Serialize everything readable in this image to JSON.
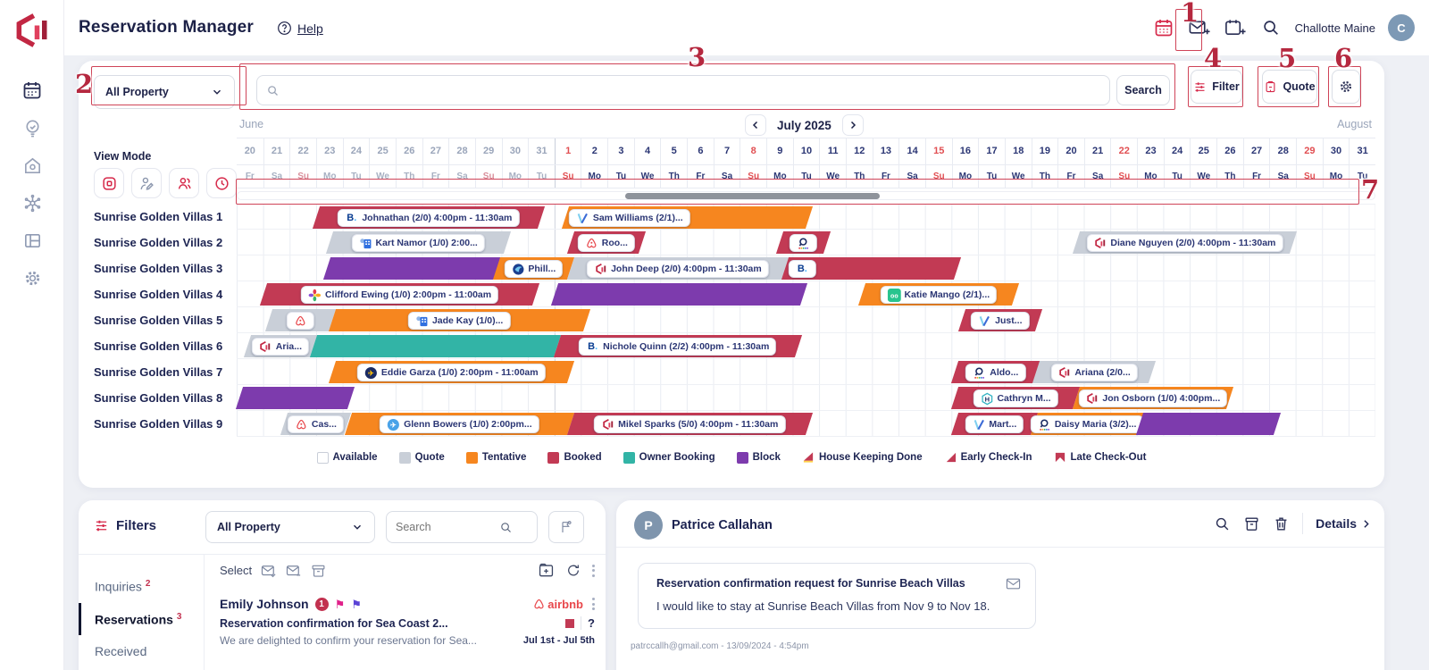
{
  "annotations": [
    "1",
    "2",
    "3",
    "4",
    "5",
    "6",
    "7"
  ],
  "header": {
    "title": "Reservation Manager",
    "help": "Help",
    "user": "Challotte Maine",
    "avatar_initial": "C"
  },
  "toolbar": {
    "property": "All Property",
    "search_btn": "Search",
    "filter": "Filter",
    "quote": "Quote"
  },
  "calendar": {
    "view_mode_label": "View Mode",
    "prev_month": "June",
    "current_month": "July 2025",
    "next_month": "August",
    "days": [
      {
        "d": "20",
        "w": "Fr",
        "m": "jun",
        "sun": false
      },
      {
        "d": "21",
        "w": "Sa",
        "m": "jun",
        "sun": false
      },
      {
        "d": "22",
        "w": "Su",
        "m": "jun",
        "sun": true
      },
      {
        "d": "23",
        "w": "Mo",
        "m": "jun",
        "sun": false
      },
      {
        "d": "24",
        "w": "Tu",
        "m": "jun",
        "sun": false
      },
      {
        "d": "25",
        "w": "We",
        "m": "jun",
        "sun": false
      },
      {
        "d": "26",
        "w": "Th",
        "m": "jun",
        "sun": false
      },
      {
        "d": "27",
        "w": "Fr",
        "m": "jun",
        "sun": false
      },
      {
        "d": "28",
        "w": "Sa",
        "m": "jun",
        "sun": false
      },
      {
        "d": "29",
        "w": "Su",
        "m": "jun",
        "sun": true
      },
      {
        "d": "30",
        "w": "Mo",
        "m": "jun",
        "sun": false
      },
      {
        "d": "31",
        "w": "Tu",
        "m": "jun",
        "sun": false
      },
      {
        "d": "1",
        "w": "Su",
        "m": "jul",
        "sun": true
      },
      {
        "d": "2",
        "w": "Mo",
        "m": "jul",
        "sun": false
      },
      {
        "d": "3",
        "w": "Tu",
        "m": "jul",
        "sun": false
      },
      {
        "d": "4",
        "w": "We",
        "m": "jul",
        "sun": false
      },
      {
        "d": "5",
        "w": "Th",
        "m": "jul",
        "sun": false
      },
      {
        "d": "6",
        "w": "Fr",
        "m": "jul",
        "sun": false
      },
      {
        "d": "7",
        "w": "Sa",
        "m": "jul",
        "sun": false
      },
      {
        "d": "8",
        "w": "Su",
        "m": "jul",
        "sun": true
      },
      {
        "d": "9",
        "w": "Mo",
        "m": "jul",
        "sun": false
      },
      {
        "d": "10",
        "w": "Tu",
        "m": "jul",
        "sun": false
      },
      {
        "d": "11",
        "w": "We",
        "m": "jul",
        "sun": false
      },
      {
        "d": "12",
        "w": "Th",
        "m": "jul",
        "sun": false
      },
      {
        "d": "13",
        "w": "Fr",
        "m": "jul",
        "sun": false
      },
      {
        "d": "14",
        "w": "Sa",
        "m": "jul",
        "sun": false
      },
      {
        "d": "15",
        "w": "Su",
        "m": "jul",
        "sun": true
      },
      {
        "d": "16",
        "w": "Mo",
        "m": "jul",
        "sun": false
      },
      {
        "d": "17",
        "w": "Tu",
        "m": "jul",
        "sun": false
      },
      {
        "d": "18",
        "w": "We",
        "m": "jul",
        "sun": false
      },
      {
        "d": "19",
        "w": "Th",
        "m": "jul",
        "sun": false
      },
      {
        "d": "20",
        "w": "Fr",
        "m": "jul",
        "sun": false
      },
      {
        "d": "21",
        "w": "Sa",
        "m": "jul",
        "sun": false
      },
      {
        "d": "22",
        "w": "Su",
        "m": "jul",
        "sun": true
      },
      {
        "d": "23",
        "w": "Mo",
        "m": "jul",
        "sun": false
      },
      {
        "d": "24",
        "w": "Tu",
        "m": "jul",
        "sun": false
      },
      {
        "d": "25",
        "w": "We",
        "m": "jul",
        "sun": false
      },
      {
        "d": "26",
        "w": "Th",
        "m": "jul",
        "sun": false
      },
      {
        "d": "27",
        "w": "Fr",
        "m": "jul",
        "sun": false
      },
      {
        "d": "28",
        "w": "Sa",
        "m": "jul",
        "sun": false
      },
      {
        "d": "29",
        "w": "Su",
        "m": "jul",
        "sun": true
      },
      {
        "d": "30",
        "w": "Mo",
        "m": "jul",
        "sun": false
      },
      {
        "d": "31",
        "w": "Tu",
        "m": "jul",
        "sun": false
      }
    ],
    "rows": [
      {
        "label": "Sunrise Golden Villas 1",
        "bars": [
          {
            "t": "booked",
            "s": 3,
            "e": 11.5,
            "icon": "booking",
            "label": "Johnathan (2/0) 4:00pm - 11:30am"
          },
          {
            "t": "tentative",
            "s": 12.4,
            "e": 21.6,
            "icon": "vrbo",
            "label": "Sam Williams (2/1)...",
            "align": "left"
          }
        ]
      },
      {
        "label": "Sunrise Golden Villas 2",
        "bars": [
          {
            "t": "quote",
            "s": 3.5,
            "e": 10.2,
            "icon": "house-blue",
            "label": "Kart Namor (1/0) 2:00..."
          },
          {
            "t": "booked",
            "s": 12.6,
            "e": 15.3,
            "icon": "airbnb",
            "label": "Roo..."
          },
          {
            "t": "booked",
            "s": 20.5,
            "e": 22.3,
            "icon": "agoda",
            "label": ""
          },
          {
            "t": "quote",
            "s": 31.7,
            "e": 39.9,
            "icon": "logo",
            "label": "Diane Nguyen (2/0) 4:00pm - 11:30am"
          }
        ]
      },
      {
        "label": "Sunrise Golden Villas 3",
        "bars": [
          {
            "t": "block",
            "s": 3.4,
            "e": 10.3
          },
          {
            "t": "tentative",
            "s": 9.8,
            "e": 12.6,
            "icon": "thunderbird",
            "label": "Phill..."
          },
          {
            "t": "quote",
            "s": 12.6,
            "e": 20.7,
            "icon": "logo",
            "label": "John Deep (2/0) 4:00pm - 11:30am"
          },
          {
            "t": "booked",
            "s": 20.7,
            "e": 27.2,
            "icon": "booking",
            "label": "",
            "align": "left"
          }
        ]
      },
      {
        "label": "Sunrise Golden Villas 4",
        "bars": [
          {
            "t": "booked",
            "s": 1,
            "e": 11.3,
            "icon": "pinwheel",
            "label": "Clifford Ewing (1/0) 2:00pm - 11:00am"
          },
          {
            "t": "block",
            "s": 12,
            "e": 21.4
          },
          {
            "t": "tentative",
            "s": 23.6,
            "e": 29.4,
            "icon": "greenoo",
            "label": "Katie Mango (2/1)..."
          }
        ]
      },
      {
        "label": "Sunrise Golden Villas 5",
        "bars": [
          {
            "t": "quote",
            "s": 1.2,
            "e": 3.6,
            "icon": "airbnb",
            "label": ""
          },
          {
            "t": "tentative",
            "s": 3.6,
            "e": 13.2,
            "icon": "house-blue",
            "label": "Jade Kay (1/0)..."
          },
          {
            "t": "booked",
            "s": 27.4,
            "e": 30.3,
            "icon": "vrbo",
            "label": "Just..."
          }
        ]
      },
      {
        "label": "Sunrise Golden Villas 6",
        "bars": [
          {
            "t": "quote",
            "s": 0.4,
            "e": 2.9,
            "icon": "logo",
            "label": "Aria..."
          },
          {
            "t": "owner",
            "s": 2.9,
            "e": 12.1
          },
          {
            "t": "booked",
            "s": 12.1,
            "e": 21.2,
            "icon": "booking",
            "label": "Nichole Quinn (2/2) 4:00pm - 11:30am"
          }
        ]
      },
      {
        "label": "Sunrise Golden Villas 7",
        "bars": [
          {
            "t": "tentative",
            "s": 3.6,
            "e": 12.6,
            "icon": "expedia",
            "label": "Eddie Garza (1/0) 2:00pm - 11:00am"
          },
          {
            "t": "booked",
            "s": 27.1,
            "e": 30.2,
            "icon": "agoda",
            "label": "Aldo..."
          },
          {
            "t": "quote",
            "s": 30.2,
            "e": 34.6,
            "icon": "logo",
            "label": "Ariana (2/0..."
          }
        ]
      },
      {
        "label": "Sunrise Golden Villas 8",
        "bars": [
          {
            "t": "block",
            "s": 0.1,
            "e": 4.3
          },
          {
            "t": "booked",
            "s": 27.1,
            "e": 31.7,
            "icon": "hotels-h",
            "label": "Cathryn M..."
          },
          {
            "t": "tentative",
            "s": 31.7,
            "e": 37.5,
            "icon": "logo",
            "label": "Jon Osborn (1/0) 4:00pm..."
          }
        ]
      },
      {
        "label": "Sunrise Golden Villas 9",
        "bars": [
          {
            "t": "quote",
            "s": 1.8,
            "e": 4.2,
            "icon": "airbnb",
            "label": "Cas..."
          },
          {
            "t": "tentative",
            "s": 4.2,
            "e": 12.6,
            "icon": "plane-blue",
            "label": "Glenn Bowers (1/0) 2:00pm..."
          },
          {
            "t": "booked",
            "s": 12.6,
            "e": 21.6,
            "icon": "logo",
            "label": "Mikel Sparks (5/0) 4:00pm - 11:30am"
          },
          {
            "t": "booked",
            "s": 27.1,
            "e": 30.1,
            "icon": "vrbo",
            "label": "Mart..."
          },
          {
            "t": "tentative",
            "s": 30.1,
            "e": 34.1,
            "icon": "agoda",
            "label": "Daisy Maria (3/2)..."
          },
          {
            "t": "block",
            "s": 34.1,
            "e": 39.3
          }
        ]
      }
    ],
    "legend": [
      {
        "label": "Available",
        "swatch": "available"
      },
      {
        "label": "Quote",
        "swatch": "quote"
      },
      {
        "label": "Tentative",
        "swatch": "tentative"
      },
      {
        "label": "Booked",
        "swatch": "booked"
      },
      {
        "label": "Owner Booking",
        "swatch": "owner"
      },
      {
        "label": "Block",
        "swatch": "block"
      },
      {
        "label": "House Keeping Done",
        "swatch": "tri-hk"
      },
      {
        "label": "Early Check-In",
        "swatch": "tri-early"
      },
      {
        "label": "Late Check-Out",
        "swatch": "tri-late"
      }
    ]
  },
  "inbox": {
    "filters_label": "Filters",
    "property": "All Property",
    "search_placeholder": "Search",
    "select_label": "Select",
    "tabs": [
      {
        "label": "Inquiries",
        "count": "2",
        "active": false
      },
      {
        "label": "Reservations",
        "count": "3",
        "active": true
      },
      {
        "label": "Received",
        "count": "",
        "active": false
      }
    ],
    "message": {
      "sender": "Emily Johnson",
      "badge": "1",
      "source": "airbnb",
      "subject": "Reservation confirmation for Sea Coast 2...",
      "preview": "We are delighted to confirm your reservation for Sea...",
      "dates": "Jul 1st - Jul 5th",
      "status_question": "?"
    }
  },
  "detail": {
    "avatar_initial": "P",
    "name": "Patrice Callahan",
    "details_label": "Details",
    "card_title": "Reservation confirmation request for Sunrise Beach Villas",
    "card_body": "I would like to stay at Sunrise Beach Villas from Nov 9 to Nov 18.",
    "meta": "patrccallh@gmail.com - 13/09/2024 - 4:54pm"
  },
  "colors": {
    "booked": "#c23a54",
    "tentative": "#f6861f",
    "quote": "#c9cfd8",
    "owner_booking": "#32b4a6",
    "block": "#7d3bad",
    "accent_red": "#c22743",
    "navy": "#1d2452",
    "annotation": "#b5283f"
  }
}
